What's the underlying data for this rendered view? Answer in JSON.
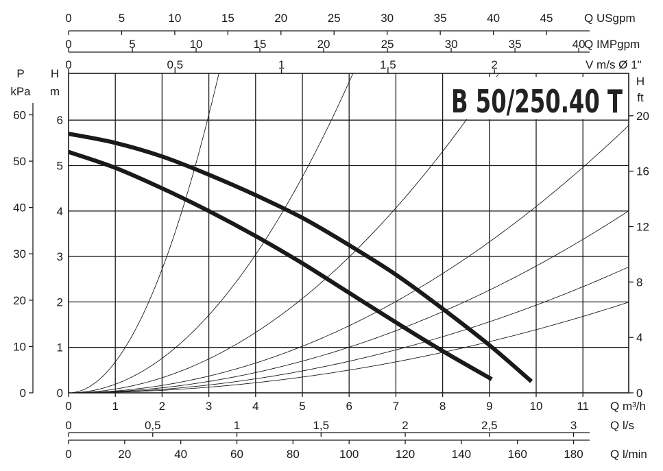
{
  "chart_data": {
    "type": "line",
    "title": "B 50/250.40 T",
    "x": {
      "label": "Q m³/h",
      "range": [
        0,
        12
      ],
      "ticks": [
        0,
        1,
        2,
        3,
        4,
        5,
        6,
        7,
        8,
        9,
        10,
        11
      ]
    },
    "y": {
      "label": "H m",
      "range": [
        0,
        6.98
      ],
      "ticks": [
        0,
        1,
        2,
        3,
        4,
        5,
        6
      ],
      "grid": true
    },
    "secondary_axes": {
      "top_usgpm": {
        "label": "Q USgpm",
        "ticks": [
          0,
          5,
          10,
          15,
          20,
          25,
          30,
          35,
          40,
          45
        ],
        "per_m3h": 4.4029
      },
      "top_impgpm": {
        "label": "Q IMPgpm",
        "ticks": [
          0,
          5,
          10,
          15,
          20,
          25,
          30,
          35,
          40
        ],
        "per_m3h": 3.6662
      },
      "top_velocity": {
        "label": "V m/s Ø 1\"",
        "ticks": [
          "0",
          "0,5",
          "1",
          "1,5",
          "2"
        ],
        "tick_values": [
          0,
          0.5,
          1,
          1.5,
          2
        ],
        "per_m3h": 0.2196
      },
      "bottom_ls": {
        "label": "Q l/s",
        "ticks": [
          "0",
          "0,5",
          "1",
          "1,5",
          "2",
          "2,5",
          "3"
        ],
        "tick_values": [
          0,
          0.5,
          1,
          1.5,
          2,
          2.5,
          3
        ],
        "per_m3h": 0.27778
      },
      "bottom_lmin": {
        "label": "Q l/min",
        "ticks": [
          0,
          20,
          40,
          60,
          80,
          100,
          120,
          140,
          160,
          180
        ],
        "per_m3h": 16.667
      },
      "left_pressure": {
        "label_top": "P",
        "label_bottom": "kPa",
        "ticks": [
          0,
          10,
          20,
          30,
          40,
          50,
          60
        ],
        "per_m": 9.81
      },
      "right_head_ft": {
        "label_top": "H",
        "label_bottom": "ft",
        "ticks": [
          0,
          4,
          8,
          12,
          16,
          20
        ],
        "per_m": 3.2808
      }
    },
    "series": [
      {
        "style": "bold",
        "points": [
          [
            0,
            5.7
          ],
          [
            1,
            5.5
          ],
          [
            2,
            5.2
          ],
          [
            3,
            4.8
          ],
          [
            4,
            4.35
          ],
          [
            5,
            3.85
          ],
          [
            6,
            3.25
          ],
          [
            7,
            2.6
          ],
          [
            8,
            1.85
          ],
          [
            9,
            1.05
          ],
          [
            9.9,
            0.25
          ]
        ]
      },
      {
        "style": "bold",
        "points": [
          [
            0,
            5.3
          ],
          [
            1,
            4.95
          ],
          [
            2,
            4.5
          ],
          [
            3,
            4.0
          ],
          [
            4,
            3.45
          ],
          [
            5,
            2.85
          ],
          [
            6,
            2.2
          ],
          [
            7,
            1.55
          ],
          [
            8,
            0.92
          ],
          [
            9.05,
            0.3
          ]
        ]
      }
    ],
    "system_curves": [
      {
        "style": "thin",
        "coef": 0.68
      },
      {
        "style": "thin",
        "coef": 0.19
      },
      {
        "style": "thin",
        "coef": 0.083
      },
      {
        "style": "thin",
        "coef": 0.041
      },
      {
        "style": "thin",
        "coef": 0.0279
      },
      {
        "style": "thin",
        "coef": 0.0193
      },
      {
        "style": "thin",
        "coef": 0.0139
      }
    ]
  }
}
